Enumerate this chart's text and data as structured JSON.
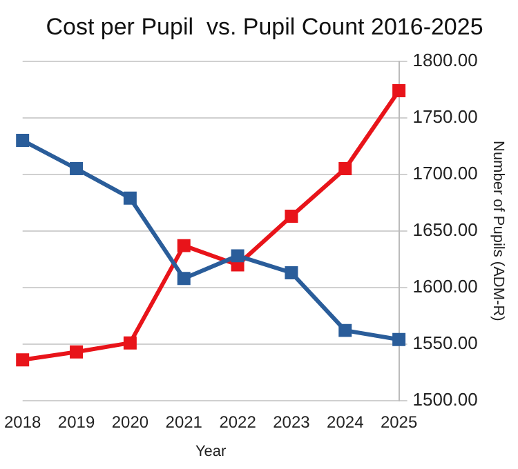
{
  "chart_data": {
    "type": "line",
    "title": "Cost per Pupil  vs. Pupil Count 2016-2025",
    "xlabel": "Year",
    "y2label": "Number of Pupils (ADM-R)",
    "categories": [
      "2018",
      "2019",
      "2020",
      "2021",
      "2022",
      "2023",
      "2024",
      "2025"
    ],
    "series": [
      {
        "color": "#2a5d9a",
        "axis": "y2",
        "values": [
          1730,
          1705,
          1679,
          1608,
          1628,
          1613,
          1562,
          1554
        ]
      },
      {
        "color": "#e8141a",
        "axis": "y2",
        "values": [
          1536,
          1543,
          1551,
          1637,
          1620,
          1663,
          1705,
          1774
        ]
      }
    ],
    "y2lim": [
      1500,
      1800
    ],
    "y2ticks": [
      {
        "value": 1500,
        "label": "1500.00"
      },
      {
        "value": 1550,
        "label": "1550.00"
      },
      {
        "value": 1600,
        "label": "1600.00"
      },
      {
        "value": 1650,
        "label": "1650.00"
      },
      {
        "value": 1700,
        "label": "1700.00"
      },
      {
        "value": 1750,
        "label": "1750.00"
      },
      {
        "value": 1800,
        "label": "1800.00"
      }
    ],
    "grid": "y",
    "legend": false,
    "marker": "square",
    "line_style": "solid"
  }
}
